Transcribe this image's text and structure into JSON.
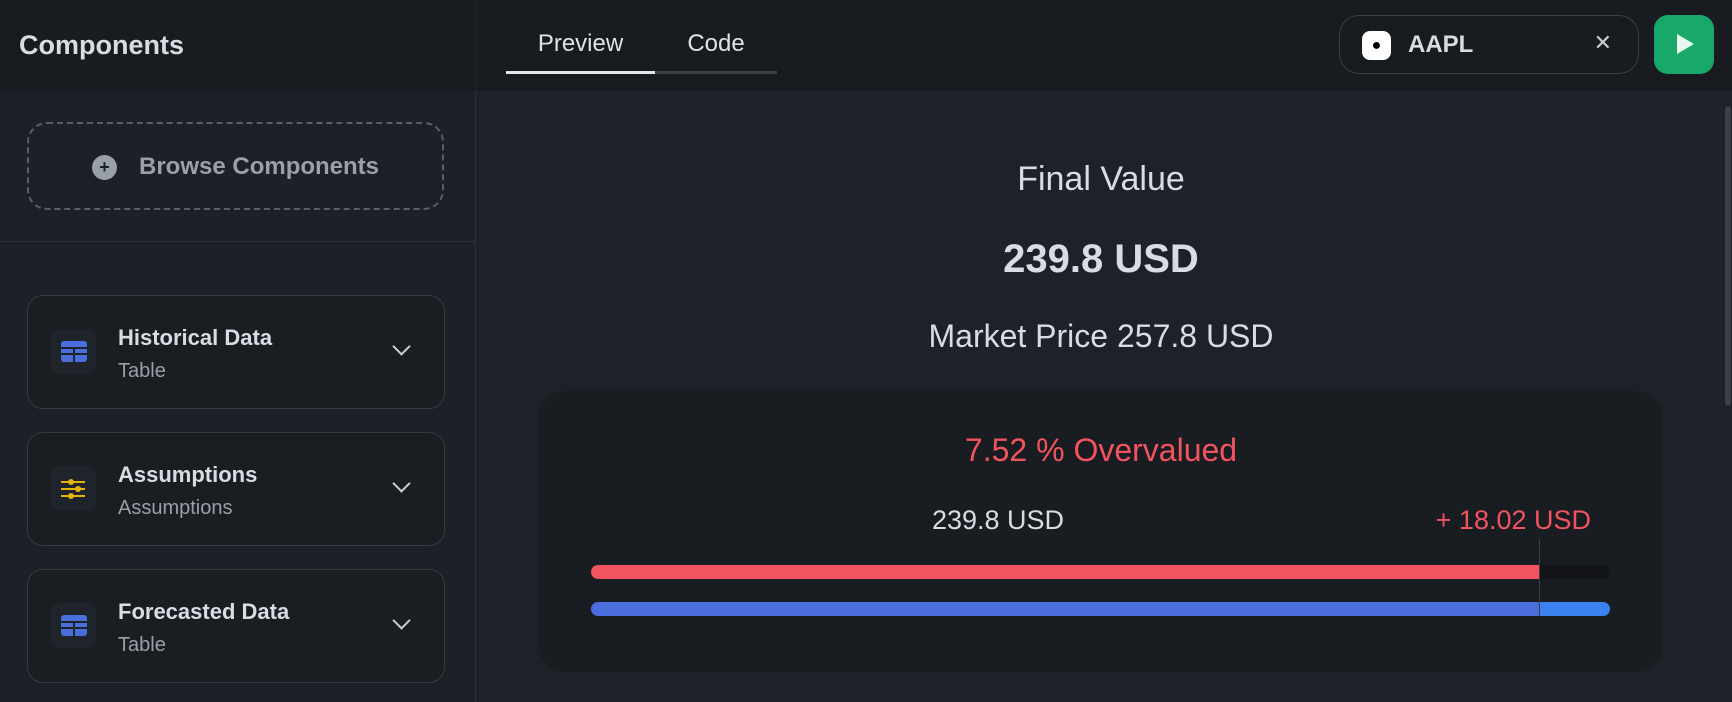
{
  "sidebar": {
    "title": "Components",
    "browse_label": "Browse Components",
    "items": [
      {
        "title": "Historical Data",
        "subtitle": "Table",
        "icon": "table-icon"
      },
      {
        "title": "Assumptions",
        "subtitle": "Assumptions",
        "icon": "sliders-icon"
      },
      {
        "title": "Forecasted Data",
        "subtitle": "Table",
        "icon": "table-icon"
      }
    ]
  },
  "tabs": [
    {
      "label": "Preview",
      "active": true
    },
    {
      "label": "Code",
      "active": false
    }
  ],
  "ticker": {
    "symbol": "AAPL",
    "logo": ""
  },
  "main": {
    "final_label": "Final Value",
    "final_value": "239.8 USD",
    "market_price": "Market Price 257.8 USD",
    "valuation_status": "7.52 % Overvalued",
    "value_label": "239.8 USD",
    "difference_label": "+ 18.02 USD",
    "intrinsic_value": 239.8,
    "market_value": 257.8
  },
  "colors": {
    "overvalued": "#f2545f",
    "intrinsic_bar": "#f2545f",
    "market_bar": "#4a6fdc",
    "market_bar_tail": "#3b82f0",
    "run_button": "#18a96a"
  }
}
